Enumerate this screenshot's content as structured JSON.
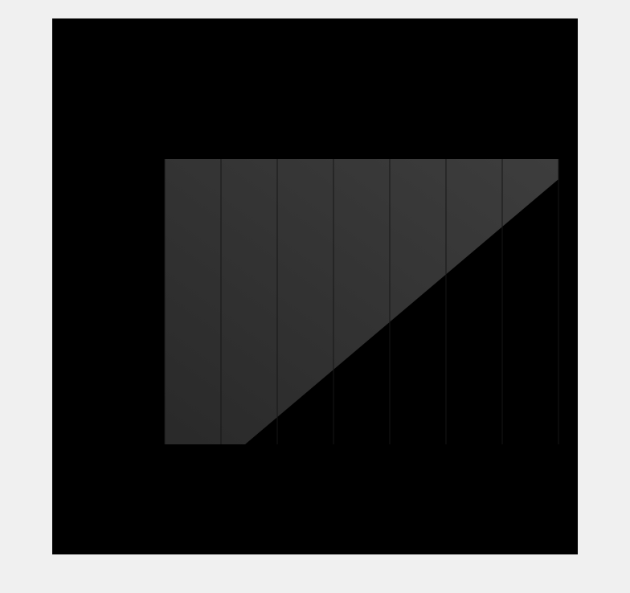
{
  "colors": {
    "page_background": "#f0f0f0",
    "card_background": "#000000",
    "area_fill": "#3a3a3a",
    "text": "#d8d8d8",
    "grid": "#161616"
  },
  "chart_data": {
    "type": "heatmap",
    "title": "",
    "subtitle": "",
    "legend": [],
    "y_labels": [],
    "x_labels": [],
    "xlabel": "",
    "source": "",
    "credit": "",
    "grid": true,
    "legend_position": "top"
  }
}
